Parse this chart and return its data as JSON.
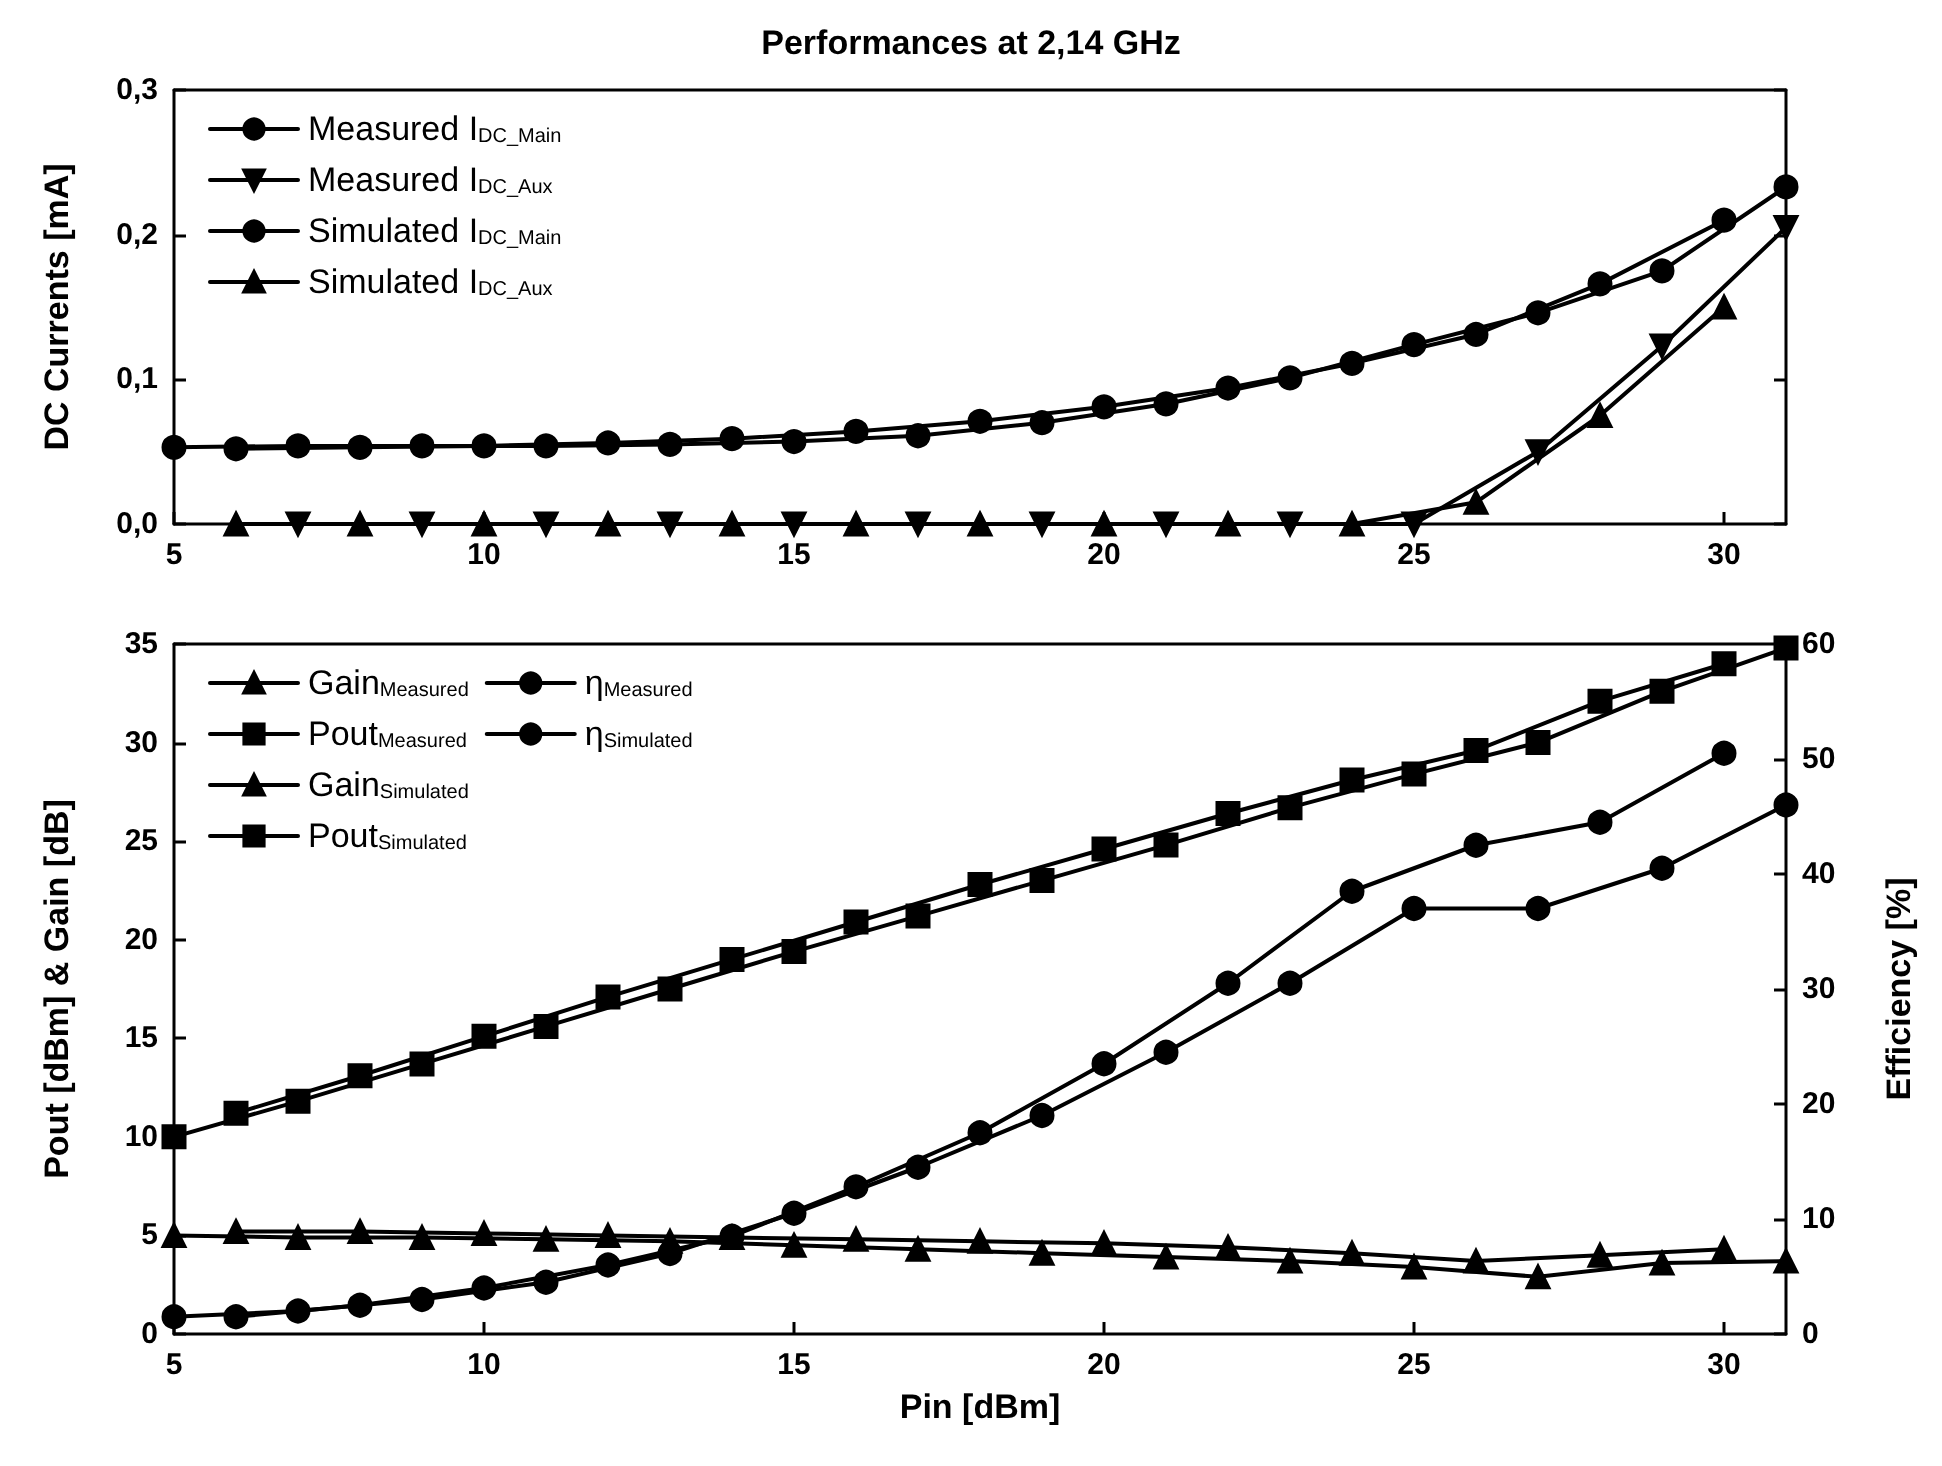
{
  "chart_data": [
    {
      "type": "line",
      "title": "Performances at 2,14 GHz",
      "ylabel": "DC Currents [mA]",
      "legend": "top left",
      "xlim": [
        5,
        31
      ],
      "xticks": [
        5,
        10,
        15,
        20,
        25,
        30
      ],
      "ylim": [
        0,
        0.3
      ],
      "yticks": [
        {
          "value": 0,
          "label": "0,0"
        },
        {
          "value": 0.1,
          "label": "0,1"
        },
        {
          "value": 0.2,
          "label": "0,2"
        },
        {
          "value": 0.3,
          "label": "0,3"
        }
      ],
      "series": [
        {
          "name": "Measured I$_{DC_Main}$",
          "color": "#000000",
          "marker": "circle",
          "x": [
            5,
            7,
            9,
            11,
            13,
            15,
            17,
            19,
            21,
            23,
            25,
            27,
            29,
            31
          ],
          "values": [
            0.053,
            0.054,
            0.054,
            0.054,
            0.055,
            0.057,
            0.061,
            0.07,
            0.083,
            0.101,
            0.124,
            0.146,
            0.175,
            0.233
          ]
        },
        {
          "name": "Measured I$_{DC_Aux}$",
          "color": "#000000",
          "marker": "triangle_down",
          "x": [
            7,
            9,
            11,
            13,
            15,
            17,
            19,
            21,
            23,
            25,
            27,
            29,
            31
          ],
          "values": [
            0,
            0,
            0,
            0,
            0,
            0,
            0,
            0,
            0,
            0,
            0.05,
            0.123,
            0.205
          ]
        },
        {
          "name": "Simulated I$_{DC_Main}$",
          "color": "#000000",
          "marker": "circle",
          "x": [
            6,
            8,
            10,
            12,
            14,
            16,
            18,
            20,
            22,
            24,
            26,
            28,
            30
          ],
          "values": [
            0.052,
            0.053,
            0.054,
            0.056,
            0.059,
            0.064,
            0.071,
            0.081,
            0.094,
            0.111,
            0.131,
            0.166,
            0.21
          ]
        },
        {
          "name": "Simulated I$_{DC_Aux}$",
          "color": "#000000",
          "marker": "triangle",
          "x": [
            6,
            8,
            10,
            12,
            14,
            16,
            18,
            20,
            22,
            24,
            26,
            28,
            30
          ],
          "values": [
            0,
            0,
            0,
            0,
            0,
            0,
            0,
            0,
            0,
            0,
            0.015,
            0.075,
            0.15
          ]
        }
      ]
    },
    {
      "type": "line",
      "xlabel": "Pin [dBm]",
      "ylabel": "Pout [dBm] & Gain [dB]",
      "y2label": "Efficiency [%]",
      "legend": "top left",
      "xlim": [
        5,
        31
      ],
      "xticks": [
        5,
        10,
        15,
        20,
        25,
        30
      ],
      "ylim": [
        0,
        35
      ],
      "yticks": [
        0,
        5,
        10,
        15,
        20,
        25,
        30,
        35
      ],
      "y2lim": [
        0,
        60
      ],
      "y2ticks": [
        0,
        10,
        20,
        30,
        40,
        50,
        60
      ],
      "series": [
        {
          "name": "Gain$_{Measured}$",
          "color": "#000000",
          "marker": "triangle",
          "x": [
            5,
            7,
            9,
            11,
            13,
            15,
            17,
            19,
            21,
            23,
            25,
            27,
            29,
            31
          ],
          "values": [
            5,
            4.9,
            4.9,
            4.8,
            4.7,
            4.5,
            4.3,
            4.1,
            3.9,
            3.7,
            3.4,
            2.9,
            3.6,
            3.7
          ]
        },
        {
          "name": "Pout$_{Measured}$",
          "color": "#000000",
          "marker": "square",
          "x": [
            5,
            7,
            9,
            11,
            13,
            15,
            17,
            19,
            21,
            23,
            25,
            27,
            29,
            31
          ],
          "values": [
            10,
            11.8,
            13.7,
            15.6,
            17.5,
            19.4,
            21.2,
            23,
            24.8,
            26.7,
            28.4,
            30,
            32.6,
            34.8
          ]
        },
        {
          "name": "Gain$_{Simulated}$",
          "color": "#000000",
          "marker": "triangle",
          "x": [
            6,
            8,
            10,
            12,
            14,
            16,
            18,
            20,
            22,
            24,
            26,
            28,
            30
          ],
          "values": [
            5.2,
            5.2,
            5.1,
            5,
            4.9,
            4.8,
            4.7,
            4.6,
            4.4,
            4.1,
            3.7,
            4,
            4.3
          ]
        },
        {
          "name": "Pout$_{Simulated}$",
          "color": "#000000",
          "marker": "square",
          "x": [
            6,
            8,
            10,
            12,
            14,
            16,
            18,
            20,
            22,
            24,
            26,
            28,
            30
          ],
          "values": [
            11.2,
            13.1,
            15.1,
            17.1,
            19,
            20.9,
            22.8,
            24.6,
            26.4,
            28.1,
            29.6,
            32.1,
            34
          ]
        },
        {
          "name": "η$_{Measured}$",
          "color": "#000000",
          "marker": "circle",
          "axis": "y2",
          "x": [
            5,
            7,
            9,
            11,
            13,
            15,
            17,
            19,
            21,
            23,
            25,
            27,
            29,
            31
          ],
          "values": [
            1.5,
            2,
            3,
            4.5,
            7,
            10.5,
            14.5,
            19,
            24.5,
            30.5,
            37,
            37,
            40.5,
            46
          ]
        },
        {
          "name": "η$_{Simulated}$",
          "color": "#000000",
          "marker": "circle",
          "axis": "y2",
          "x": [
            6,
            8,
            10,
            12,
            14,
            16,
            18,
            20,
            22,
            24,
            26,
            28,
            30
          ],
          "values": [
            1.5,
            2.5,
            4,
            6,
            8.5,
            12.8,
            17.5,
            23.5,
            30.5,
            38.5,
            42.5,
            44.5,
            50.5
          ]
        }
      ]
    }
  ]
}
